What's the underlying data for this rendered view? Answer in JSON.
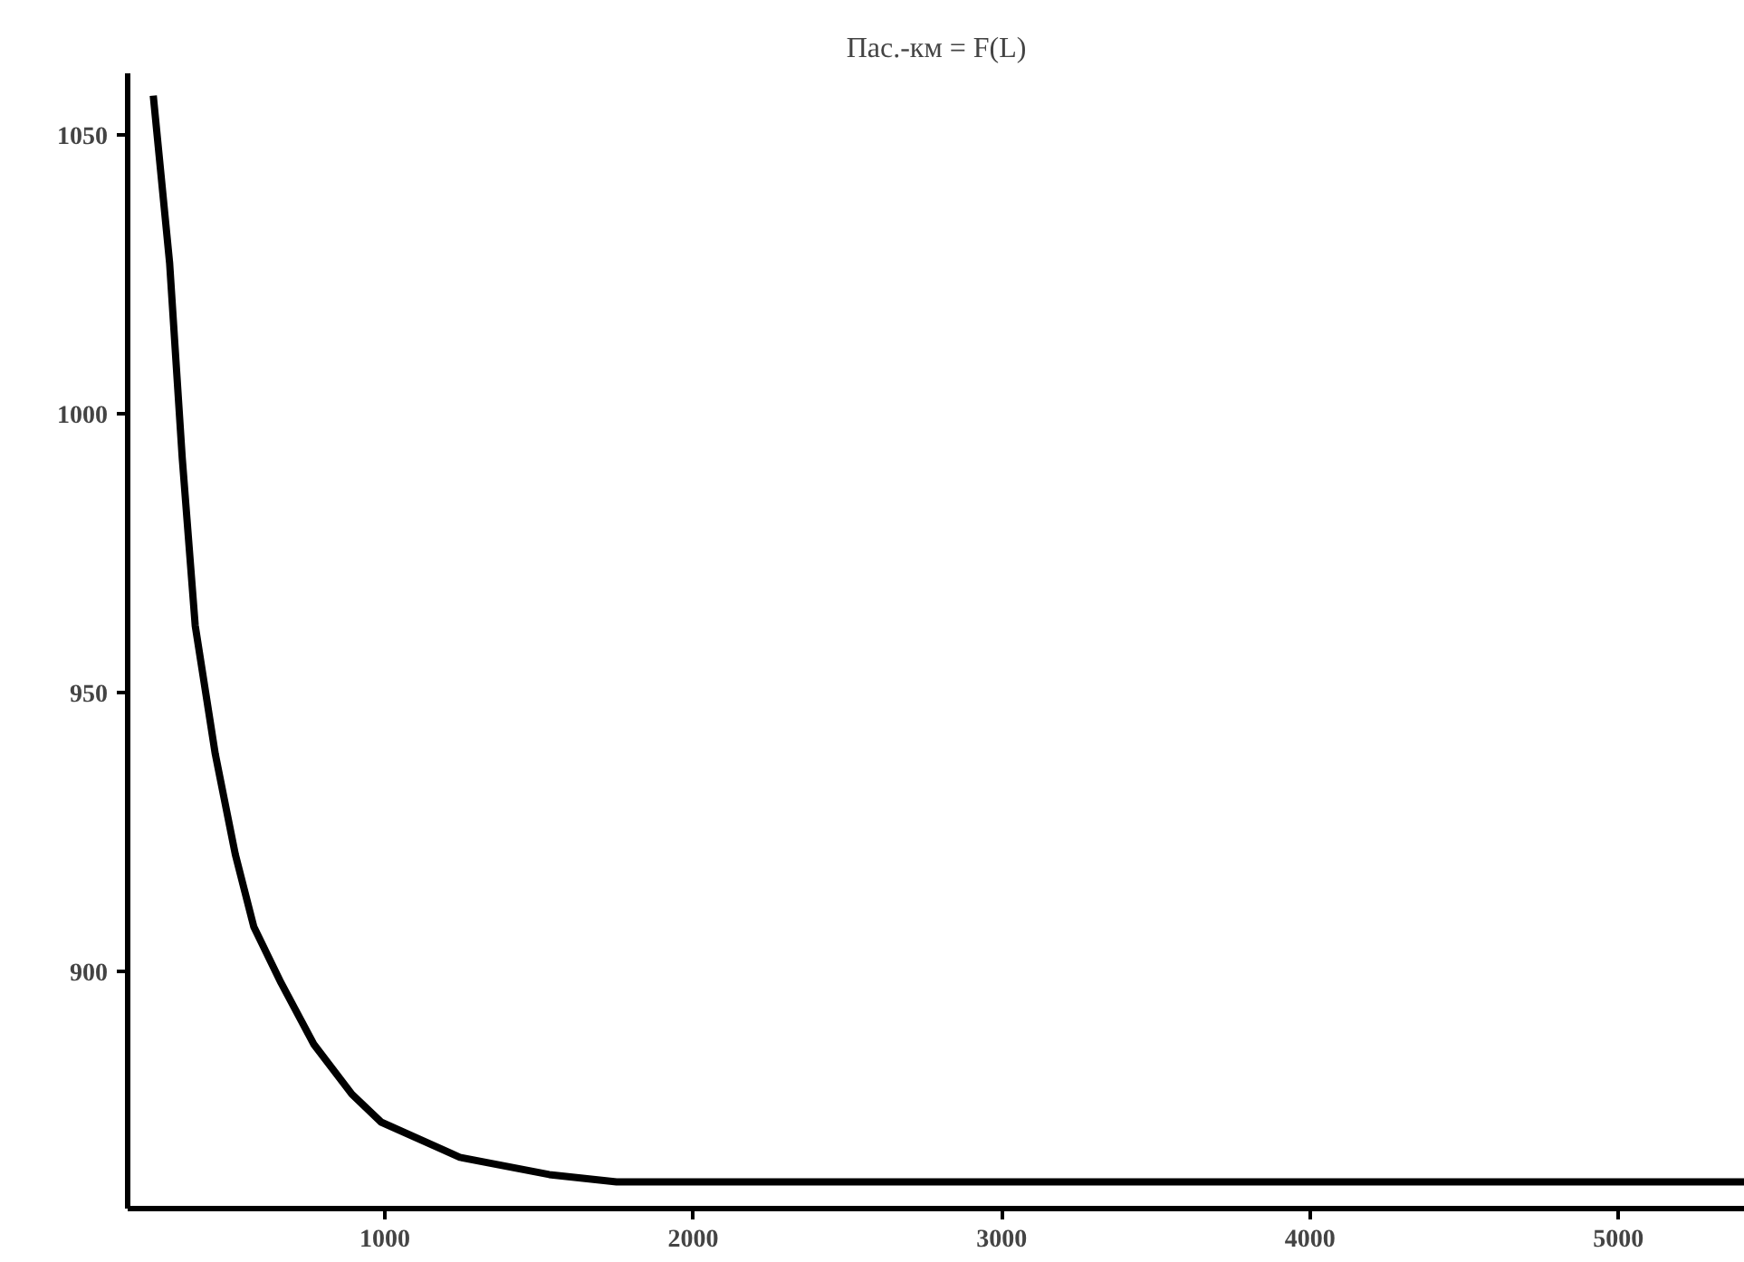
{
  "chart_data": {
    "type": "line",
    "title": "Пас.-км = F(L)",
    "x": [
      249,
      302,
      343,
      385,
      450,
      515,
      575,
      663,
      769,
      893,
      988,
      1243,
      1533,
      1751,
      2500,
      3500,
      4500,
      5410
    ],
    "series": [
      {
        "color": "#000000",
        "values": [
          1057,
          1027,
          992,
          962,
          939,
          921,
          908,
          898,
          887,
          878,
          873,
          866.7,
          863.6,
          862.3,
          862.3,
          862.3,
          862.3,
          862.3
        ]
      }
    ],
    "xlim": [
      166,
      5410
    ],
    "ylim": [
      857.5,
      1061
    ],
    "xticks": [
      1000,
      2000,
      3000,
      4000,
      5000
    ],
    "yticks": [
      900,
      950,
      1000,
      1050
    ],
    "grid": false,
    "marker": "none",
    "line_style": "solid"
  }
}
